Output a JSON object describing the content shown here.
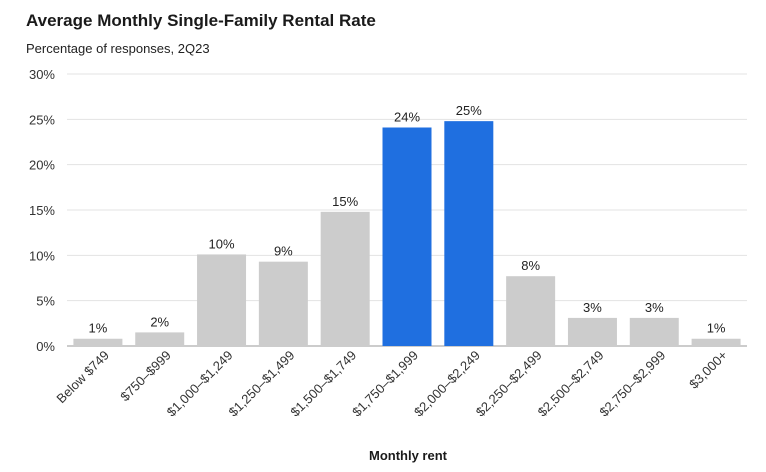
{
  "title": "Average Monthly Single-Family Rental Rate",
  "subtitle": "Percentage of responses, 2Q23",
  "chart_data": {
    "type": "bar",
    "title": "Average Monthly Single-Family Rental Rate",
    "subtitle": "Percentage of responses, 2Q23",
    "xlabel": "Monthly rent",
    "ylabel": "",
    "ylim": [
      0,
      30
    ],
    "yticks": [
      "0%",
      "5%",
      "10%",
      "15%",
      "20%",
      "25%",
      "30%"
    ],
    "grid": true,
    "categories": [
      "Below $749",
      "$750–$999",
      "$1,000–$1,249",
      "$1,250–$1,499",
      "$1,500–$1,749",
      "$1,750–$1,999",
      "$2,000–$2,249",
      "$2,250–$2,499",
      "$2,500–$2,749",
      "$2,750–$2,999",
      "$3,000+"
    ],
    "values": [
      0.8,
      1.5,
      10.1,
      9.3,
      14.8,
      24.1,
      24.8,
      7.7,
      3.1,
      3.1,
      0.8
    ],
    "data_labels": [
      "1%",
      "2%",
      "10%",
      "9%",
      "15%",
      "24%",
      "25%",
      "8%",
      "3%",
      "3%",
      "1%"
    ],
    "highlighted": [
      false,
      false,
      false,
      false,
      false,
      true,
      true,
      false,
      false,
      false,
      false
    ],
    "colors": {
      "bar": "#cccccc",
      "highlight": "#1f6fe0",
      "grid": "#e3e3e3",
      "axis": "#999999"
    }
  }
}
